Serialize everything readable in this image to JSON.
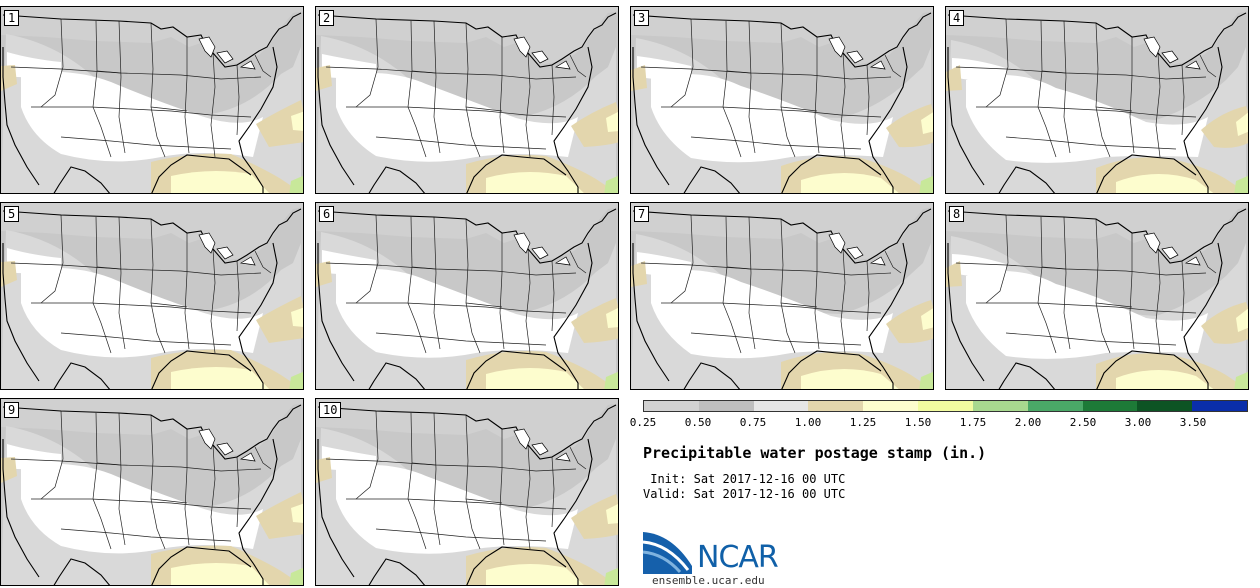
{
  "map": {
    "field": "Precipitable water",
    "members": [
      "1",
      "2",
      "3",
      "4",
      "5",
      "6",
      "7",
      "8",
      "9",
      "10"
    ]
  },
  "colorbar": {
    "colors": [
      "#d2d2d2",
      "#bebebe",
      "#e6e6e6",
      "#e3d6ad",
      "#fdfdce",
      "#f2fca0",
      "#a8d98f",
      "#4aa867",
      "#1d7a37",
      "#0d5424",
      "#0a2eaa"
    ],
    "labels": [
      "0.25",
      "0.50",
      "0.75",
      "1.00",
      "1.25",
      "1.50",
      "1.75",
      "2.00",
      "2.50",
      "3.00",
      "3.50"
    ]
  },
  "title": "Precipitable water postage stamp (in.)",
  "init": {
    "label": "Init:",
    "value": "Sat 2017-12-16 00 UTC"
  },
  "valid": {
    "label": "Valid:",
    "value": "Sat 2017-12-16 00 UTC"
  },
  "logo": {
    "name": "NCAR",
    "url": "ensemble.ucar.edu"
  }
}
